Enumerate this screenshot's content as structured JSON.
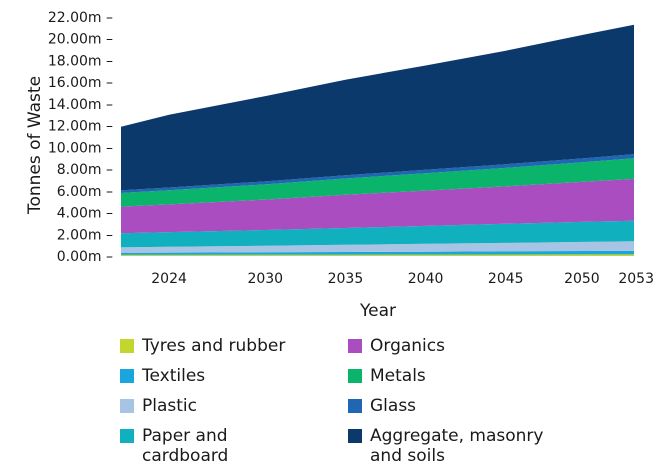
{
  "chart_data": {
    "type": "area",
    "stacked": true,
    "xlabel": "Year",
    "ylabel": "Tonnes of Waste",
    "x_ticks": [
      2024,
      2030,
      2035,
      2040,
      2045,
      2050,
      2053
    ],
    "y_ticks": [
      "0.00m",
      "2.00m",
      "4.00m",
      "6.00m",
      "8.00m",
      "10.00m",
      "12.00m",
      "14.00m",
      "16.00m",
      "18.00m",
      "20.00m",
      "22.00m"
    ],
    "xlim": [
      2021,
      2053
    ],
    "ylim": [
      0,
      22
    ],
    "x": [
      2021,
      2024,
      2030,
      2035,
      2040,
      2045,
      2050,
      2053
    ],
    "series": [
      {
        "name": "Tyres and rubber",
        "color": "#c2d62e",
        "values": [
          0.1,
          0.1,
          0.11,
          0.12,
          0.13,
          0.14,
          0.15,
          0.15
        ]
      },
      {
        "name": "Textiles",
        "color": "#1aa6dd",
        "values": [
          0.2,
          0.21,
          0.23,
          0.25,
          0.27,
          0.29,
          0.31,
          0.32
        ]
      },
      {
        "name": "Plastic",
        "color": "#a8c4e5",
        "values": [
          0.5,
          0.54,
          0.6,
          0.66,
          0.72,
          0.78,
          0.84,
          0.88
        ]
      },
      {
        "name": "Paper and cardboard",
        "color": "#10b0bf",
        "values": [
          1.3,
          1.35,
          1.45,
          1.55,
          1.65,
          1.75,
          1.85,
          1.9
        ]
      },
      {
        "name": "Organics",
        "color": "#a94dc0",
        "values": [
          2.45,
          2.55,
          2.8,
          3.05,
          3.25,
          3.45,
          3.7,
          3.85
        ]
      },
      {
        "name": "Metals",
        "color": "#0ab56b",
        "values": [
          1.25,
          1.3,
          1.4,
          1.5,
          1.6,
          1.7,
          1.8,
          1.9
        ]
      },
      {
        "name": "Glass",
        "color": "#1f66b3",
        "values": [
          0.25,
          0.26,
          0.28,
          0.3,
          0.32,
          0.34,
          0.36,
          0.38
        ]
      },
      {
        "name": "Aggregate, masonry and soils",
        "color": "#0b396b",
        "values": [
          5.85,
          6.7,
          7.85,
          8.8,
          9.6,
          10.45,
          11.4,
          11.9
        ]
      }
    ],
    "legend_position": "bottom",
    "grid": false
  },
  "legend": [
    {
      "label": "Tyres and rubber",
      "color": "#c2d62e"
    },
    {
      "label": "Organics",
      "color": "#a94dc0"
    },
    {
      "label": "Textiles",
      "color": "#1aa6dd"
    },
    {
      "label": "Metals",
      "color": "#0ab56b"
    },
    {
      "label": "Plastic",
      "color": "#a8c4e5"
    },
    {
      "label": "Glass",
      "color": "#1f66b3"
    },
    {
      "label": "Paper and cardboard",
      "color": "#10b0bf"
    },
    {
      "label": "Aggregate, masonry and soils",
      "color": "#0b396b"
    }
  ]
}
